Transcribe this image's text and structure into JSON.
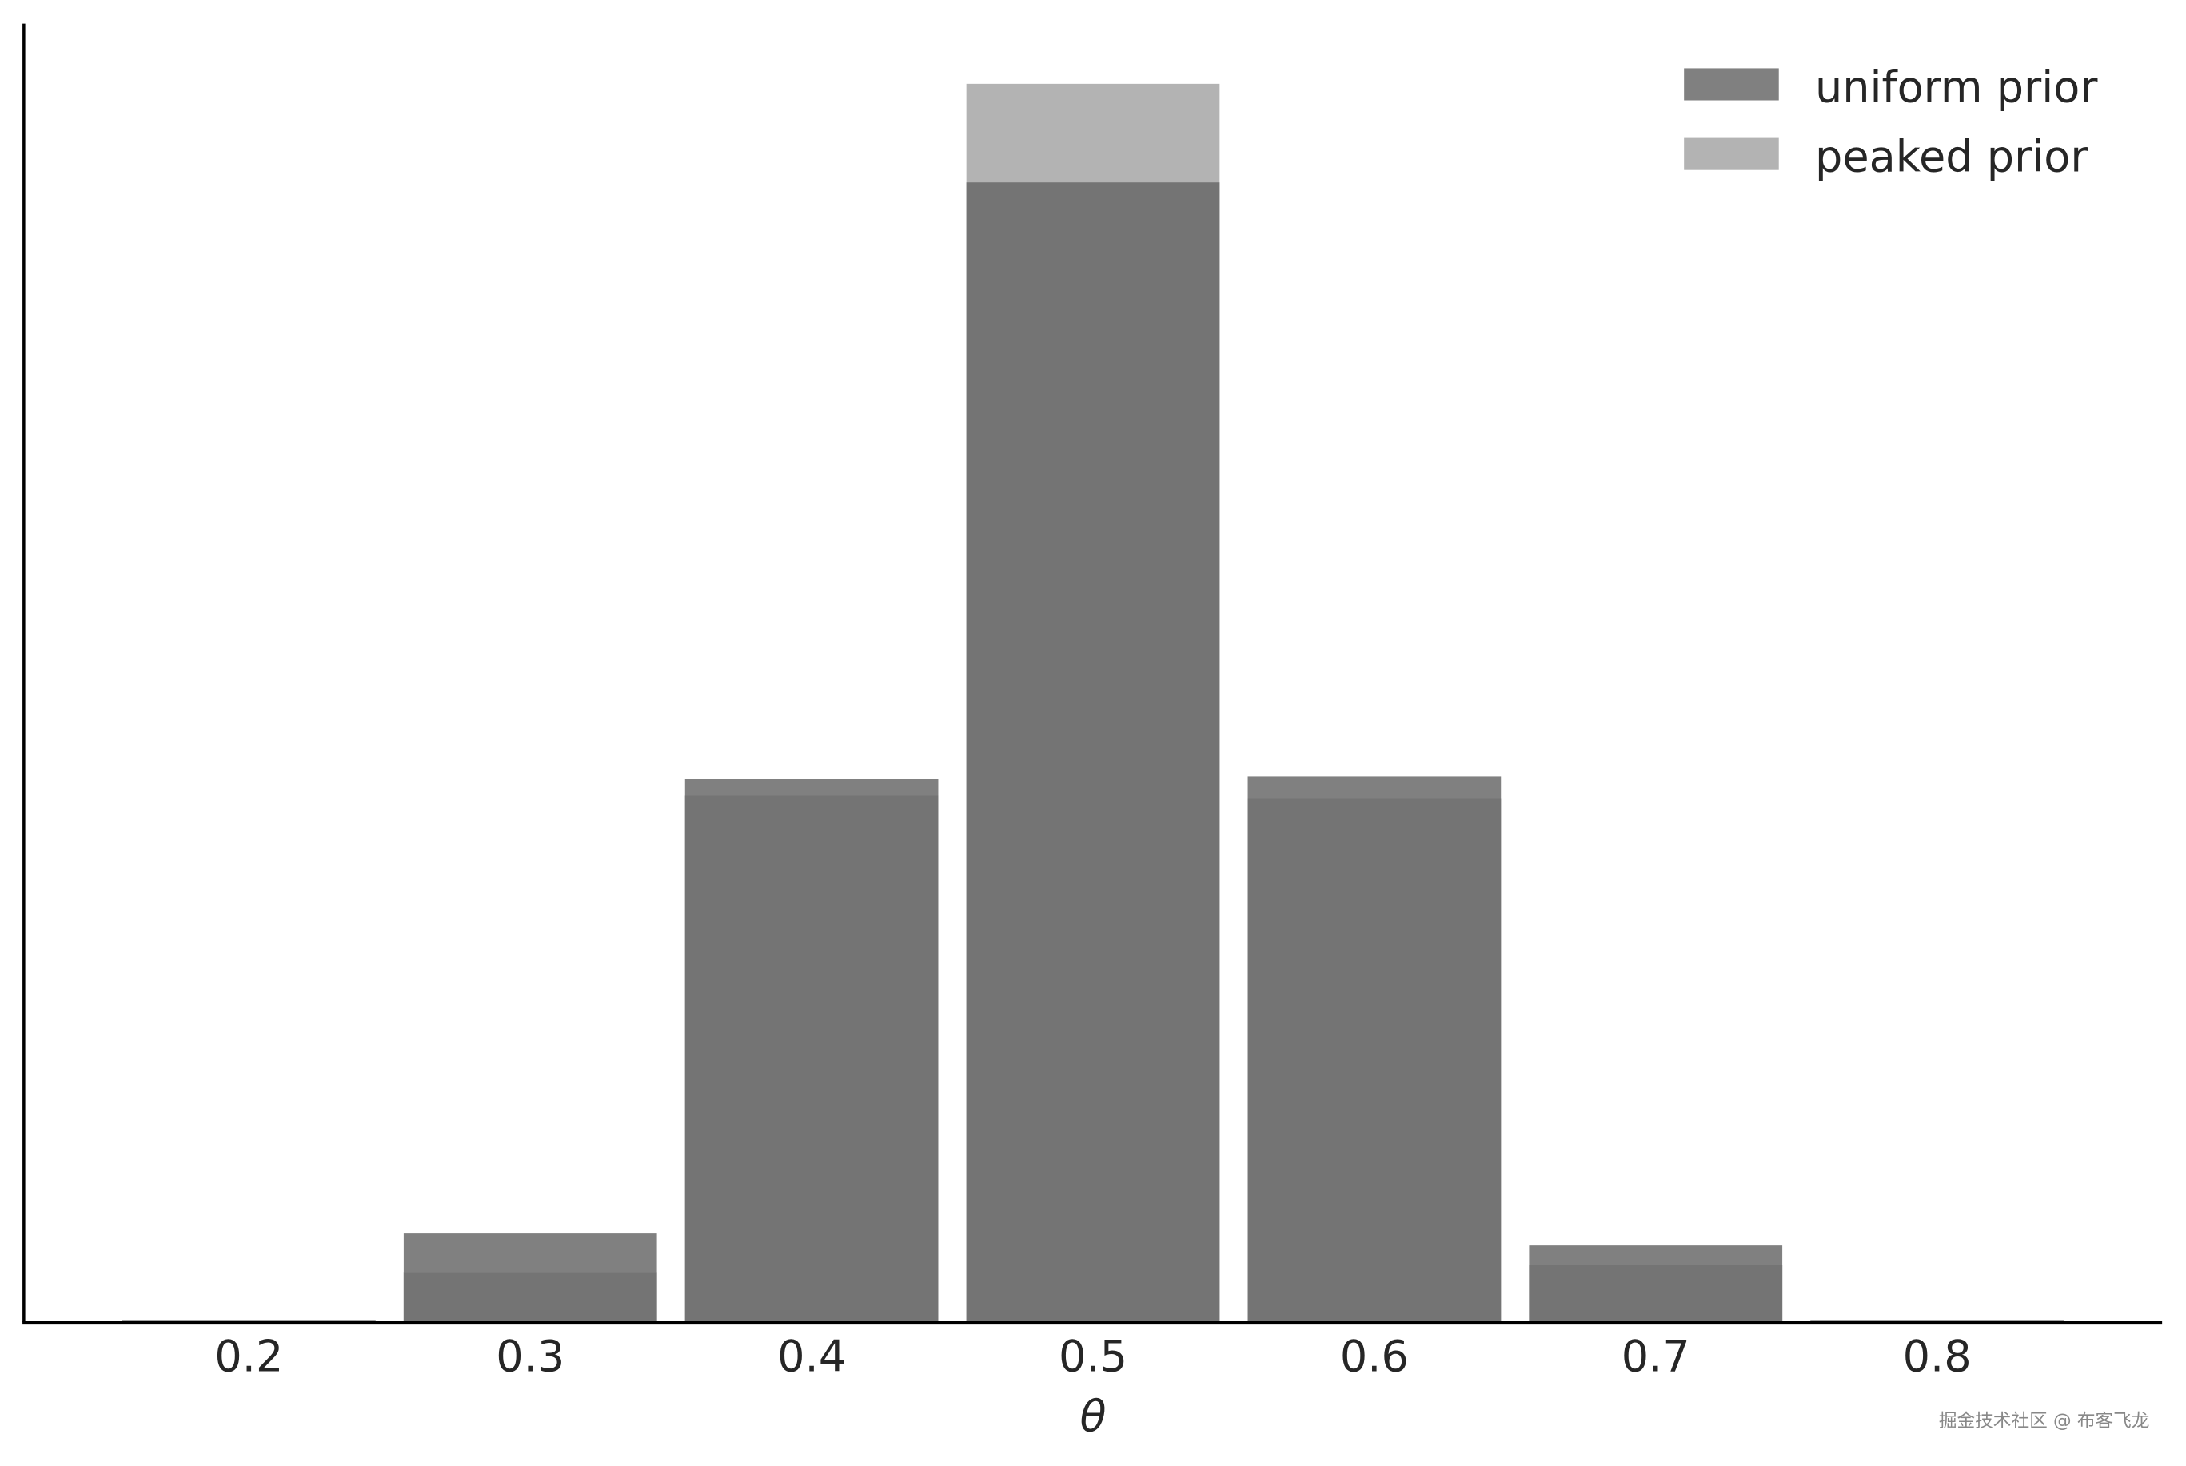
{
  "chart_data": {
    "type": "bar",
    "title": "",
    "xlabel": "θ",
    "ylabel": "",
    "categories": [
      "0.2",
      "0.3",
      "0.4",
      "0.5",
      "0.6",
      "0.7",
      "0.8"
    ],
    "x": [
      0.2,
      0.3,
      0.4,
      0.5,
      0.6,
      0.7,
      0.8
    ],
    "series": [
      {
        "name": "uniform prior",
        "color": "#808080",
        "values": [
          0.001,
          0.037,
          0.226,
          0.474,
          0.227,
          0.032,
          0.001
        ]
      },
      {
        "name": "peaked prior",
        "color": "#b3b3b3",
        "values": [
          0.001,
          0.021,
          0.219,
          0.515,
          0.218,
          0.024,
          0.001
        ]
      }
    ],
    "overlap_color": "#747474",
    "bar_width": 0.09,
    "xlim": [
      0.12,
      0.88
    ],
    "ylim": [
      0,
      0.54
    ],
    "y_ticks_shown": false,
    "grid": false,
    "legend_position": "top-right"
  },
  "watermark": "掘金技术社区 @ 布客飞龙"
}
